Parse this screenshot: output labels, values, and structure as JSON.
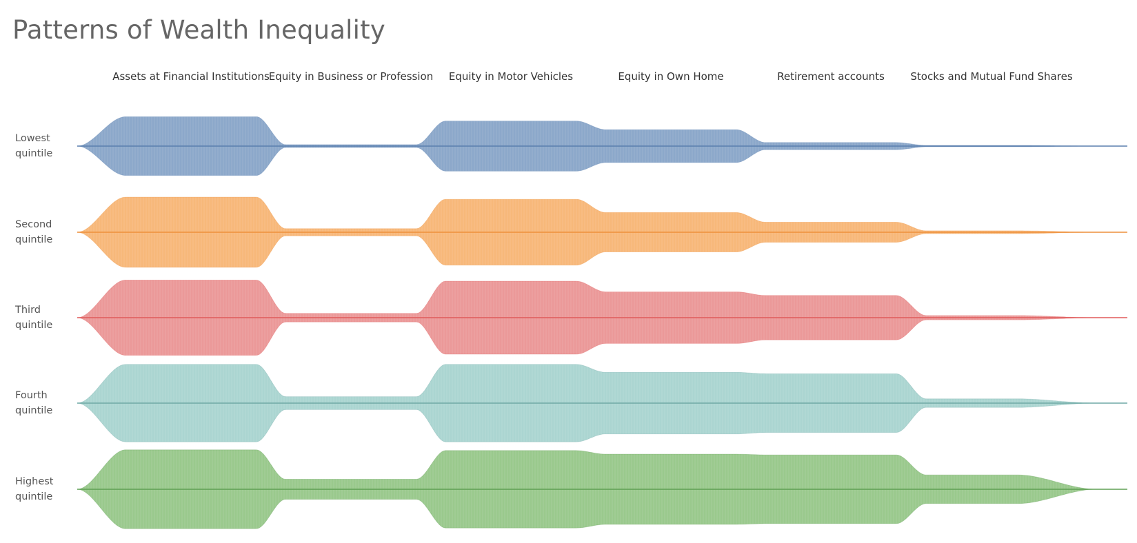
{
  "title": "Patterns of Wealth Inequality",
  "chart_data": {
    "type": "area",
    "subtype": "mirrored ridgeline / violin streams",
    "title": "Patterns of Wealth Inequality",
    "categories": [
      "Assets at Financial Institutions",
      "Equity in Business or Profession",
      "Equity in Motor Vehicles",
      "Equity in Own Home",
      "Retirement accounts",
      "Stocks and Mutual Fund Shares"
    ],
    "value_note": "relative half-thickness of each stream (0 = none, 1 = maximum); values estimated from the figure",
    "series": [
      {
        "name": "Lowest quintile",
        "color": "#7f9fc4",
        "line_color": "#5a7fae",
        "values": [
          0.82,
          0.04,
          0.7,
          0.46,
          0.1,
          0.02
        ]
      },
      {
        "name": "Second quintile",
        "color": "#f6b06b",
        "line_color": "#ee8f3a",
        "values": [
          0.98,
          0.1,
          0.92,
          0.55,
          0.28,
          0.04
        ]
      },
      {
        "name": "Third quintile",
        "color": "#e98e8e",
        "line_color": "#e05a5a",
        "values": [
          1.05,
          0.12,
          1.02,
          0.72,
          0.62,
          0.06
        ]
      },
      {
        "name": "Fourth quintile",
        "color": "#a2d0cc",
        "line_color": "#6fa9a6",
        "values": [
          1.08,
          0.18,
          1.08,
          0.86,
          0.82,
          0.12
        ]
      },
      {
        "name": "Highest quintile",
        "color": "#8fc381",
        "line_color": "#5e9f53",
        "values": [
          1.1,
          0.28,
          1.08,
          0.98,
          0.96,
          0.4
        ]
      }
    ]
  }
}
